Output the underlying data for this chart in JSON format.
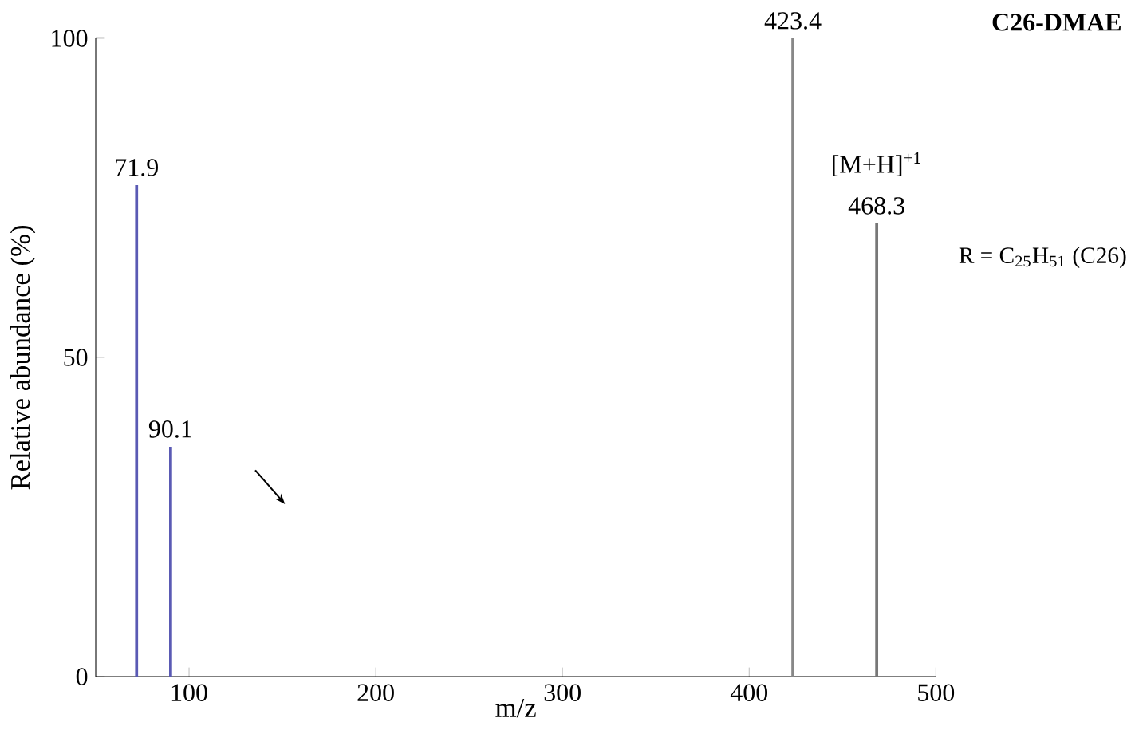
{
  "chart_data": {
    "type": "bar",
    "title": "C26-DMAE",
    "xlabel": "m/z",
    "ylabel": "Relative abundance (%)",
    "x": [
      71.9,
      90.1,
      423.4,
      468.3
    ],
    "values": [
      77,
      36,
      100,
      71
    ],
    "colors": [
      "#5a5ab4",
      "#5a5ab4",
      "#888888",
      "#777777"
    ],
    "xlim": [
      50,
      500
    ],
    "ylim": [
      0,
      100
    ],
    "xticks": [
      100,
      200,
      300,
      400,
      500
    ],
    "yticks": [
      0,
      50,
      100
    ],
    "annotations": [
      {
        "text": "71.9",
        "x": 71.9,
        "y": 77
      },
      {
        "text": "90.1",
        "x": 90.1,
        "y": 36
      },
      {
        "text": "423.4",
        "x": 423.4,
        "y": 100
      },
      {
        "text": "[M+H]$^{+1}$",
        "x": 468.3,
        "y": 71
      },
      {
        "text": "468.3",
        "x": 468.3,
        "y": 71
      },
      "R = C$_{25}$H$_{51}$ (C26)"
    ]
  }
}
